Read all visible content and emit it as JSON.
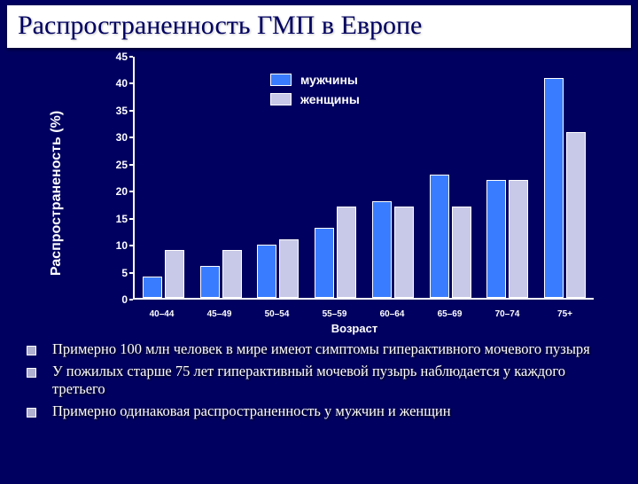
{
  "title": "Распространенность ГМП в Европе",
  "chart": {
    "type": "bar",
    "ylabel": "Распространеность (%)",
    "xaxis_title": "Возраст",
    "ylim": [
      0,
      45
    ],
    "ytick_step": 5,
    "yticks": [
      0,
      5,
      10,
      15,
      20,
      25,
      30,
      35,
      40,
      45
    ],
    "categories": [
      "40–44",
      "45–49",
      "50–54",
      "55–59",
      "60–64",
      "65–69",
      "70–74",
      "75+"
    ],
    "series": [
      {
        "name": "мужчины",
        "color": "#3a7cff",
        "values": [
          4,
          6,
          10,
          13,
          18,
          23,
          22,
          41
        ]
      },
      {
        "name": "женщины",
        "color": "#c8c8e8",
        "values": [
          9,
          9,
          11,
          17,
          17,
          17,
          22,
          31
        ]
      }
    ],
    "background_color": "#000060",
    "axis_color": "#ffffff",
    "label_fontsize": 12,
    "title_fontsize": 30,
    "bar_border_color": "#ffffff"
  },
  "legend": {
    "items": [
      {
        "swatch": "#3a7cff",
        "label": "мужчины"
      },
      {
        "swatch": "#c8c8e8",
        "label": "женщины"
      }
    ]
  },
  "bullets": [
    "Примерно 100 млн человек в мире имеют симптомы гиперактивного мочевого пузыря",
    "У пожилых старше 75 лет гиперактивный мочевой пузырь наблюдается у каждого третьего",
    "Примерно одинаковая распространенность у мужчин и женщин"
  ]
}
